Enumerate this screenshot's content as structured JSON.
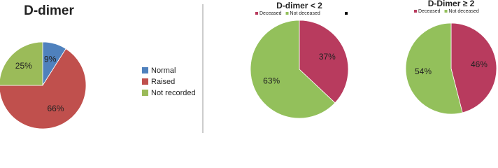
{
  "chart_data": [
    {
      "type": "pie",
      "title": "D-dimer",
      "categories": [
        "Normal",
        "Raised",
        "Not recorded"
      ],
      "values": [
        9,
        66,
        25
      ],
      "value_labels": [
        "9%",
        "66%",
        "25%"
      ],
      "colors": [
        "#4f81bd",
        "#c0504d",
        "#9bbb59"
      ],
      "legend": "right"
    },
    {
      "type": "pie",
      "title": "D-dimer < 2",
      "categories": [
        "Deceased",
        "Not deceased"
      ],
      "values": [
        37,
        63
      ],
      "value_labels": [
        "37%",
        "63%"
      ],
      "colors": [
        "#b83b5e",
        "#93c05b"
      ],
      "legend": "top"
    },
    {
      "type": "pie",
      "title": "D-Dimer ≥ 2",
      "categories": [
        "Deceased",
        "Not deceased"
      ],
      "values": [
        46,
        54
      ],
      "value_labels": [
        "46%",
        "54%"
      ],
      "colors": [
        "#b83b5e",
        "#93c05b"
      ],
      "legend": "top"
    }
  ]
}
